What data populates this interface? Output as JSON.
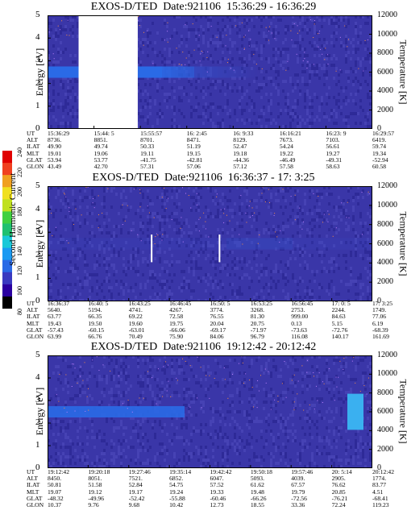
{
  "colorbar": {
    "label": "Second Harmonic Current",
    "ticks": [
      "80",
      "100",
      "120",
      "140",
      "160",
      "180",
      "200",
      "220",
      "240"
    ],
    "colors": [
      "#000000",
      "#2a00a0",
      "#3a3ac0",
      "#2a6ae6",
      "#1a9af2",
      "#1ac8d8",
      "#20c070",
      "#40d040",
      "#c0e020",
      "#f0e020",
      "#f0a020",
      "#f04020",
      "#e00000"
    ]
  },
  "chart_data": [
    {
      "type": "heatmap",
      "title": "EXOS-D/TED  Date:921106  15:36:29 - 16:36:29",
      "ylabel": "Energy [eV]",
      "y2label": "Temperature [K]",
      "ylim": [
        0,
        5
      ],
      "y2lim": [
        0,
        12000
      ],
      "yticks": [
        "0",
        "1",
        "2",
        "3",
        "4",
        "5"
      ],
      "y2ticks": [
        "0",
        "2000",
        "4000",
        "6000",
        "8000",
        "10000",
        "12000"
      ],
      "data_gap": [
        "15:44:15",
        "15:55:57"
      ],
      "table": {
        "labels": [
          "UT",
          "ALT",
          "ILAT",
          "MLT",
          "GLAT",
          "GLON"
        ],
        "columns": [
          [
            "15:36:29",
            "8736.",
            "49.90",
            "19.01",
            "53.94",
            "43.49"
          ],
          [
            "15:44: 5",
            "8851.",
            "49.74",
            "19.06",
            "53.77",
            "42.70"
          ],
          [
            "15:55:57",
            "8701.",
            "50.33",
            "19.11",
            "-41.75",
            "57.31"
          ],
          [
            "16: 2:45",
            "8471.",
            "51.19",
            "19.15",
            "-42.81",
            "57.06"
          ],
          [
            "16: 9:33",
            "8129.",
            "52.47",
            "19.18",
            "-44.36",
            "57.12"
          ],
          [
            "16:16:21",
            "7673.",
            "54.24",
            "19.22",
            "-46.49",
            "57.58"
          ],
          [
            "16:23: 9",
            "7103.",
            "56.61",
            "19.27",
            "-49.31",
            "58.63"
          ],
          [
            "16:29:57",
            "6419.",
            "59.74",
            "19.34",
            "-52.94",
            "60.58"
          ]
        ]
      }
    },
    {
      "type": "heatmap",
      "title": "EXOS-D/TED  Date:921106  16:36:37 - 17: 3:25",
      "ylabel": "Energy [eV]",
      "y2label": "Temperature [K]",
      "ylim": [
        0,
        5
      ],
      "y2lim": [
        0,
        12000
      ],
      "yticks": [
        "0",
        "1",
        "2",
        "3",
        "4",
        "5"
      ],
      "y2ticks": [
        "0",
        "2000",
        "4000",
        "6000",
        "8000",
        "10000",
        "12000"
      ],
      "table": {
        "labels": [
          "UT",
          "ALT",
          "ILAT",
          "MLT",
          "GLAT",
          "GLON"
        ],
        "columns": [
          [
            "16:36:37",
            "5640.",
            "63.77",
            "19.43",
            "-57.43",
            "63.99"
          ],
          [
            "16:40: 5",
            "5194.",
            "66.35",
            "19.50",
            "-60.15",
            "66.76"
          ],
          [
            "16:43:25",
            "4741.",
            "69.22",
            "19.60",
            "-63.01",
            "70.49"
          ],
          [
            "16:46:45",
            "4267.",
            "72.58",
            "19.75",
            "-66.06",
            "75.90"
          ],
          [
            "16:50: 5",
            "3774.",
            "76.55",
            "20.04",
            "-69.17",
            "84.06"
          ],
          [
            "16:53:25",
            "3268.",
            "81.30",
            "20.75",
            "-71.97",
            "96.79"
          ],
          [
            "16:56:45",
            "2753.",
            "999.00",
            "0.13",
            "-73.63",
            "116.08"
          ],
          [
            "17: 0: 5",
            "2244.",
            "84.63",
            "5.15",
            "-72.76",
            "140.17"
          ],
          [
            "17: 3:25",
            "1749.",
            "77.06",
            "6.19",
            "-68.39",
            "161.69"
          ]
        ]
      }
    },
    {
      "type": "heatmap",
      "title": "EXOS-D/TED  Date:921106  19:12:42 - 20:12:42",
      "ylabel": "Energy [eV]",
      "y2label": "Temperature [K]",
      "ylim": [
        0,
        5
      ],
      "y2lim": [
        0,
        12000
      ],
      "yticks": [
        "0",
        "1",
        "2",
        "3",
        "4",
        "5"
      ],
      "y2ticks": [
        "0",
        "2000",
        "4000",
        "6000",
        "8000",
        "10000",
        "12000"
      ],
      "table": {
        "labels": [
          "UT",
          "ALT",
          "ILAT",
          "MLT",
          "GLAT",
          "GLON"
        ],
        "columns": [
          [
            "19:12:42",
            "8450.",
            "50.81",
            "19.07",
            "-48.32",
            "10.37"
          ],
          [
            "19:20:18",
            "8051.",
            "51.58",
            "19.12",
            "-49.96",
            "9.76"
          ],
          [
            "19:27:46",
            "7521.",
            "52.84",
            "19.17",
            "-52.42",
            "9.68"
          ],
          [
            "19:35:14",
            "6852.",
            "54.75",
            "19.24",
            "-55.88",
            "10.42"
          ],
          [
            "19:42:42",
            "6047.",
            "57.52",
            "19.33",
            "-60.46",
            "12.73"
          ],
          [
            "19:50:18",
            "5093.",
            "61.62",
            "19.48",
            "-66.26",
            "18.55"
          ],
          [
            "19:57:46",
            "4039.",
            "67.57",
            "19.79",
            "-72.56",
            "33.36"
          ],
          [
            "20: 5:14",
            "2905.",
            "76.62",
            "20.85",
            "-76.21",
            "72.24"
          ],
          [
            "20:12:42",
            "1774.",
            "83.77",
            "4.51",
            "-68.41",
            "119.23"
          ]
        ]
      }
    }
  ]
}
